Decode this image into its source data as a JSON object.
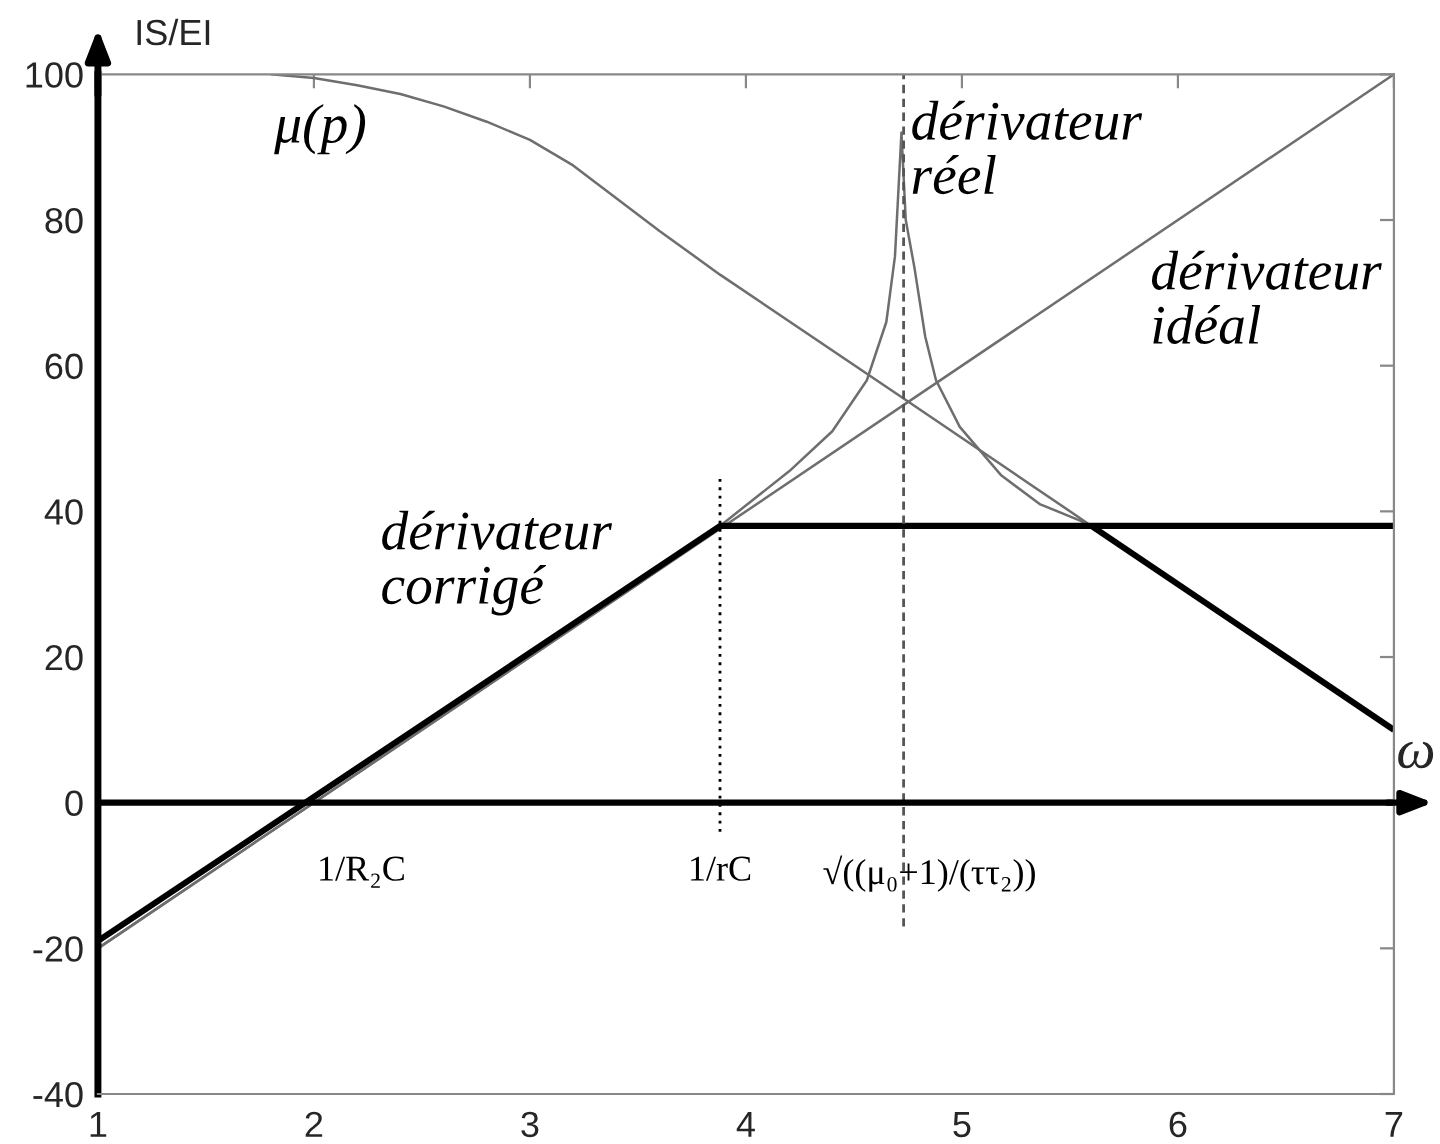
{
  "chart_data": {
    "type": "line",
    "xlabel": "ω",
    "ylabel": "IS/EI",
    "xlim": [
      1,
      7
    ],
    "xticks": [
      1,
      2,
      3,
      4,
      5,
      6,
      7
    ],
    "ylim": [
      -40,
      100
    ],
    "yticks": [
      -40,
      -20,
      0,
      20,
      40,
      60,
      80,
      100
    ],
    "series": [
      {
        "name": "μ(p)",
        "color": "#6e6e6e",
        "x": [
          1.8,
          2.0,
          2.2,
          2.4,
          2.6,
          2.8,
          3.0,
          3.2,
          3.4,
          3.6,
          3.88,
          4.73,
          5.6,
          7
        ],
        "values": [
          100,
          99.5,
          98.5,
          97.3,
          95.6,
          93.5,
          91,
          87.5,
          83,
          78.5,
          72.5,
          55.5,
          38,
          10
        ]
      },
      {
        "name": "dérivateur\nidéal",
        "color": "#6e6e6e",
        "x": [
          1,
          7
        ],
        "values": [
          -20,
          100
        ]
      },
      {
        "name": "dérivateur\nréel",
        "color": "#6e6e6e",
        "x": [
          1,
          2,
          3,
          3.5,
          3.88,
          4.2,
          4.4,
          4.56,
          4.65,
          4.69,
          4.72,
          4.74,
          4.78,
          4.83,
          4.88,
          4.99,
          5.18,
          5.36,
          5.55,
          5.62,
          7
        ],
        "values": [
          -20,
          0,
          20,
          30,
          38,
          45.5,
          51,
          58,
          66,
          75,
          92,
          80,
          73.5,
          64,
          58,
          51.6,
          45,
          41,
          38.7,
          37.6,
          10
        ]
      },
      {
        "name": "dérivateur\ncorrigé",
        "color": "#000000",
        "x": [
          1,
          3.88,
          7
        ],
        "values": [
          -19,
          38,
          38
        ]
      },
      {
        "color": "#000000",
        "x": [
          5.6,
          7
        ],
        "values": [
          38,
          10
        ]
      },
      {
        "color": "#000000",
        "line_style": "dotted",
        "x": [
          3.88,
          3.88
        ],
        "values": [
          -4,
          45
        ]
      },
      {
        "color": "#555555",
        "line_style": "dashed",
        "x": [
          4.73,
          4.73
        ],
        "values": [
          -17,
          100
        ]
      }
    ],
    "ref_lines": [
      {
        "axis": "y",
        "value": 0,
        "color": "#000000"
      }
    ],
    "annotations": [
      {
        "text": "1/R₂C",
        "x": 2.22,
        "y": 0
      },
      {
        "text": "1/rC",
        "x": 3.88,
        "y": 0
      },
      {
        "text": "√((μ₀+1)/(ττ₂))",
        "x": 4.85,
        "y": 0
      }
    ]
  }
}
